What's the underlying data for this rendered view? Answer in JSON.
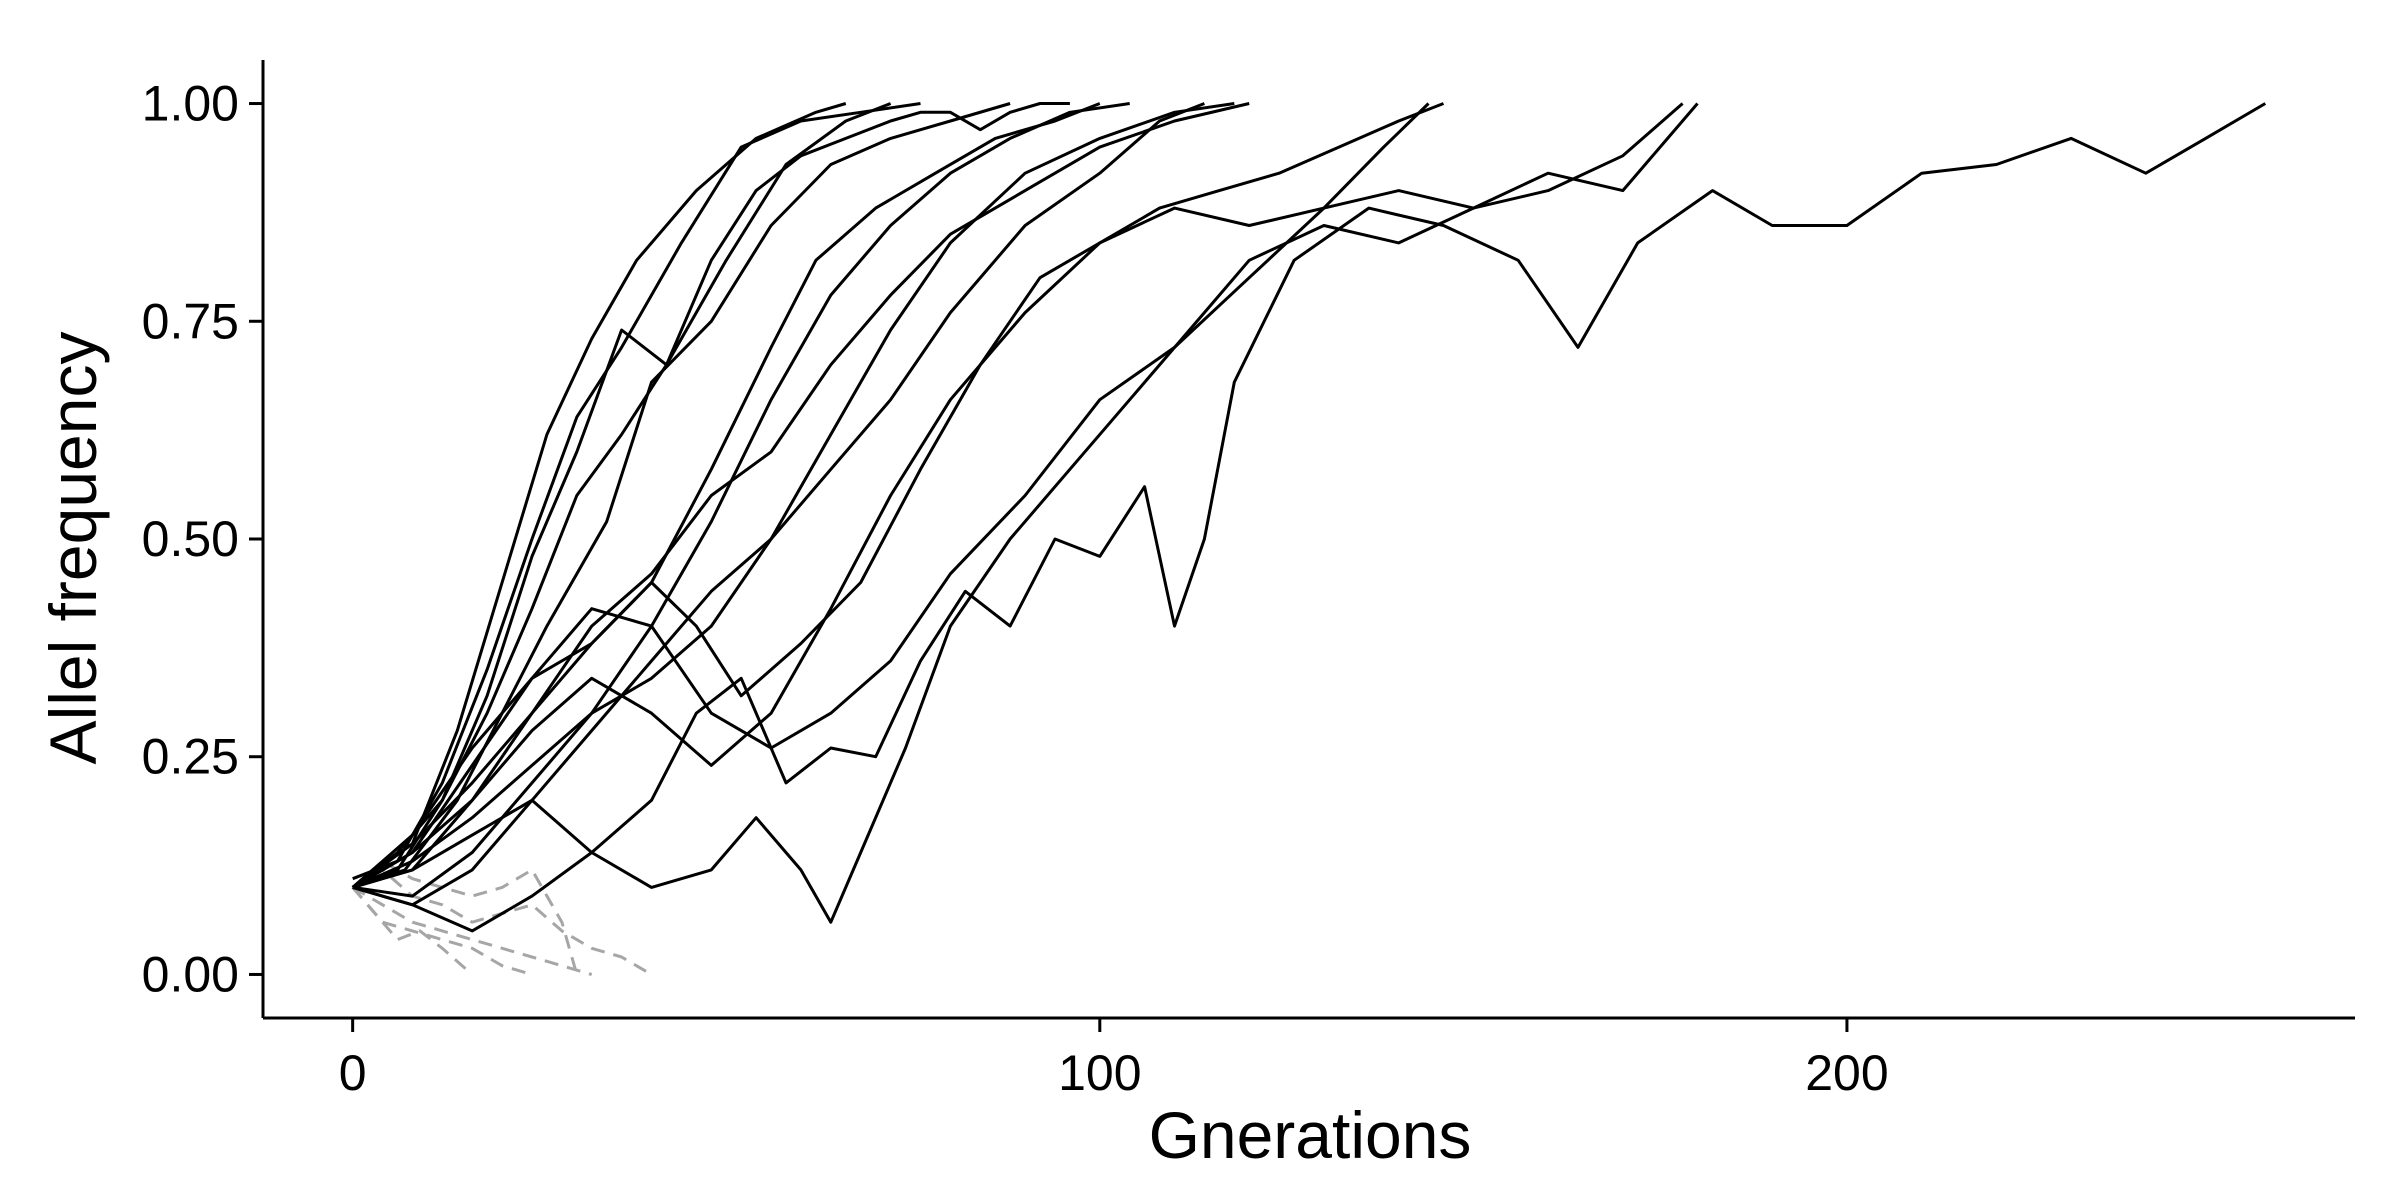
{
  "chart_data": {
    "type": "line",
    "title": "",
    "xlabel": "Gnerations",
    "ylabel": "Allel frequency",
    "xlim": [
      -12,
      268
    ],
    "ylim": [
      -0.05,
      1.05
    ],
    "x_ticks": [
      0,
      100,
      200
    ],
    "x_tick_labels": [
      "0",
      "100",
      "200"
    ],
    "y_ticks": [
      0,
      0.25,
      0.5,
      0.75,
      1.0
    ],
    "y_tick_labels": [
      "0.00",
      "0.25",
      "0.50",
      "0.75",
      "1.00"
    ],
    "grid": false,
    "legend": "none",
    "fixed_color": "#000000",
    "lost_color": "#a6a6a6",
    "series": [
      {
        "outcome": "fixed",
        "x": [
          0,
          8,
          14,
          20,
          26,
          32,
          38,
          46,
          54,
          62,
          66
        ],
        "y": [
          0.1,
          0.15,
          0.28,
          0.45,
          0.62,
          0.73,
          0.82,
          0.9,
          0.96,
          0.99,
          1.0
        ]
      },
      {
        "outcome": "fixed",
        "x": [
          0,
          6,
          12,
          18,
          24,
          30,
          36,
          44,
          52,
          60,
          68,
          76
        ],
        "y": [
          0.11,
          0.13,
          0.22,
          0.35,
          0.5,
          0.64,
          0.72,
          0.84,
          0.95,
          0.98,
          0.99,
          1.0
        ]
      },
      {
        "outcome": "fixed",
        "x": [
          0,
          6,
          12,
          18,
          24,
          30,
          36,
          42,
          50,
          58,
          66,
          72
        ],
        "y": [
          0.1,
          0.14,
          0.2,
          0.32,
          0.48,
          0.6,
          0.74,
          0.7,
          0.82,
          0.93,
          0.98,
          1.0
        ]
      },
      {
        "outcome": "fixed",
        "x": [
          0,
          7,
          14,
          20,
          26,
          34,
          40,
          48,
          56,
          64,
          72,
          80,
          88
        ],
        "y": [
          0.1,
          0.12,
          0.2,
          0.3,
          0.4,
          0.52,
          0.68,
          0.75,
          0.86,
          0.93,
          0.96,
          0.98,
          1.0
        ]
      },
      {
        "outcome": "fixed",
        "x": [
          0,
          8,
          16,
          24,
          32,
          40,
          48,
          56,
          64,
          72,
          80,
          88,
          96,
          104
        ],
        "y": [
          0.1,
          0.09,
          0.14,
          0.22,
          0.3,
          0.4,
          0.52,
          0.66,
          0.78,
          0.86,
          0.92,
          0.96,
          0.99,
          1.0
        ]
      },
      {
        "outcome": "fixed",
        "x": [
          0,
          8,
          16,
          24,
          32,
          40,
          48,
          56,
          64,
          72,
          80,
          90,
          100,
          110,
          120
        ],
        "y": [
          0.1,
          0.12,
          0.2,
          0.3,
          0.4,
          0.46,
          0.55,
          0.6,
          0.7,
          0.78,
          0.85,
          0.9,
          0.95,
          0.98,
          1.0
        ]
      },
      {
        "outcome": "fixed",
        "x": [
          0,
          8,
          16,
          24,
          32,
          40,
          48,
          56,
          64,
          72,
          80,
          90,
          100,
          110,
          118
        ],
        "y": [
          0.1,
          0.08,
          0.12,
          0.2,
          0.28,
          0.36,
          0.44,
          0.5,
          0.62,
          0.74,
          0.84,
          0.92,
          0.96,
          0.99,
          1.0
        ]
      },
      {
        "outcome": "fixed",
        "x": [
          0,
          8,
          16,
          24,
          32,
          40,
          48,
          56,
          64,
          72,
          80,
          90,
          100,
          108,
          114
        ],
        "y": [
          0.1,
          0.13,
          0.18,
          0.24,
          0.3,
          0.34,
          0.4,
          0.5,
          0.58,
          0.66,
          0.76,
          0.86,
          0.92,
          0.98,
          1.0
        ]
      },
      {
        "outcome": "fixed",
        "x": [
          0,
          8,
          16,
          24,
          32,
          40,
          48,
          56,
          62,
          70,
          78,
          86,
          94,
          100
        ],
        "y": [
          0.1,
          0.16,
          0.26,
          0.34,
          0.38,
          0.45,
          0.58,
          0.72,
          0.82,
          0.88,
          0.92,
          0.96,
          0.98,
          1.0
        ]
      },
      {
        "outcome": "fixed",
        "x": [
          0,
          6,
          12,
          18,
          24,
          30,
          36,
          42,
          48,
          54,
          60,
          66,
          72,
          76,
          80,
          84,
          88,
          92,
          96
        ],
        "y": [
          0.1,
          0.12,
          0.2,
          0.3,
          0.42,
          0.55,
          0.62,
          0.7,
          0.82,
          0.9,
          0.94,
          0.96,
          0.98,
          0.99,
          0.99,
          0.97,
          0.99,
          1.0,
          1.0
        ]
      },
      {
        "outcome": "fixed",
        "x": [
          0,
          8,
          16,
          24,
          32,
          40,
          46,
          52,
          60,
          68,
          76,
          84,
          92,
          100,
          108,
          116,
          124,
          132,
          140,
          146
        ],
        "y": [
          0.1,
          0.15,
          0.22,
          0.3,
          0.38,
          0.45,
          0.4,
          0.32,
          0.38,
          0.45,
          0.58,
          0.7,
          0.8,
          0.84,
          0.88,
          0.9,
          0.92,
          0.95,
          0.98,
          1.0
        ]
      },
      {
        "outcome": "fixed",
        "x": [
          0,
          8,
          16,
          24,
          32,
          40,
          48,
          56,
          64,
          72,
          80,
          90,
          100,
          110,
          120,
          130,
          138,
          144
        ],
        "y": [
          0.1,
          0.14,
          0.24,
          0.34,
          0.42,
          0.4,
          0.3,
          0.26,
          0.3,
          0.36,
          0.46,
          0.55,
          0.66,
          0.72,
          0.8,
          0.88,
          0.95,
          1.0
        ]
      },
      {
        "outcome": "fixed",
        "x": [
          0,
          8,
          16,
          24,
          32,
          40,
          48,
          56,
          64,
          72,
          80,
          90,
          100,
          110,
          120,
          130,
          140,
          150,
          160,
          170,
          176,
          180
        ],
        "y": [
          0.1,
          0.14,
          0.2,
          0.28,
          0.34,
          0.3,
          0.24,
          0.3,
          0.42,
          0.55,
          0.66,
          0.76,
          0.84,
          0.88,
          0.86,
          0.88,
          0.9,
          0.88,
          0.92,
          0.9,
          0.96,
          1.0
        ]
      },
      {
        "outcome": "fixed",
        "x": [
          0,
          8,
          16,
          24,
          32,
          40,
          48,
          54,
          60,
          64,
          68,
          74,
          80,
          88,
          96,
          104,
          112,
          120,
          130,
          140,
          150,
          160,
          170,
          178
        ],
        "y": [
          0.1,
          0.12,
          0.16,
          0.2,
          0.14,
          0.1,
          0.12,
          0.18,
          0.12,
          0.06,
          0.14,
          0.26,
          0.4,
          0.5,
          0.58,
          0.66,
          0.74,
          0.82,
          0.86,
          0.84,
          0.88,
          0.9,
          0.94,
          1.0
        ]
      },
      {
        "outcome": "fixed",
        "x": [
          0,
          8,
          16,
          24,
          32,
          40,
          46,
          52,
          58,
          64,
          70,
          76,
          82,
          88,
          94,
          100,
          106,
          110,
          114,
          118,
          126,
          136,
          146,
          156,
          164,
          172,
          182,
          190,
          200,
          210,
          220,
          230,
          240,
          248,
          256
        ],
        "y": [
          0.1,
          0.08,
          0.05,
          0.09,
          0.14,
          0.2,
          0.3,
          0.34,
          0.22,
          0.26,
          0.25,
          0.36,
          0.44,
          0.4,
          0.5,
          0.48,
          0.56,
          0.4,
          0.5,
          0.68,
          0.82,
          0.88,
          0.86,
          0.82,
          0.72,
          0.84,
          0.9,
          0.86,
          0.86,
          0.92,
          0.93,
          0.96,
          0.92,
          0.96,
          1.0
        ]
      },
      {
        "outcome": "lost",
        "x": [
          0,
          4,
          8,
          12,
          16,
          20,
          24,
          28,
          32
        ],
        "y": [
          0.1,
          0.08,
          0.06,
          0.05,
          0.04,
          0.03,
          0.02,
          0.01,
          0.0
        ]
      },
      {
        "outcome": "lost",
        "x": [
          0,
          4,
          8,
          12,
          16,
          20,
          24,
          28,
          32,
          36,
          40
        ],
        "y": [
          0.1,
          0.12,
          0.09,
          0.08,
          0.06,
          0.07,
          0.08,
          0.05,
          0.03,
          0.02,
          0.0
        ]
      },
      {
        "outcome": "lost",
        "x": [
          0,
          4,
          8,
          12,
          16,
          20,
          24
        ],
        "y": [
          0.1,
          0.06,
          0.05,
          0.04,
          0.03,
          0.01,
          0.0
        ]
      },
      {
        "outcome": "lost",
        "x": [
          0,
          4,
          8,
          12,
          16,
          20,
          24,
          28,
          30
        ],
        "y": [
          0.1,
          0.13,
          0.11,
          0.1,
          0.09,
          0.1,
          0.12,
          0.06,
          0.0
        ]
      },
      {
        "outcome": "lost",
        "x": [
          0,
          3,
          6,
          9,
          12,
          16
        ],
        "y": [
          0.1,
          0.07,
          0.04,
          0.05,
          0.03,
          0.0
        ]
      }
    ]
  }
}
